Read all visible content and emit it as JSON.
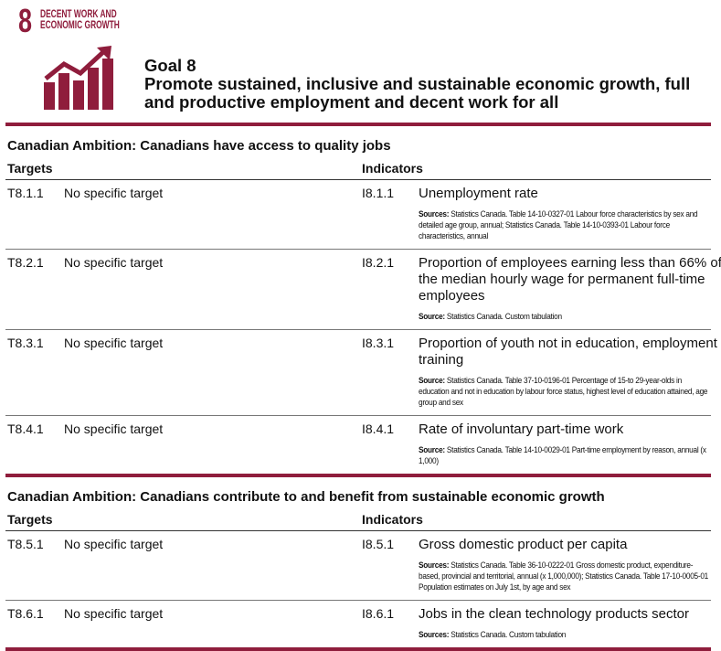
{
  "badge": {
    "number": "8",
    "lines": [
      "DECENT WORK AND",
      "ECONOMIC GROWTH"
    ]
  },
  "goal": {
    "label": "Goal 8",
    "title": "Promote sustained, inclusive and sustainable economic growth, full and productive employment and decent work for all"
  },
  "sections": [
    {
      "ambition": "Canadian Ambition: Canadians have access to quality jobs",
      "targets_header": "Targets",
      "indicators_header": "Indicators",
      "rows": [
        {
          "target_id": "T8.1.1",
          "target_text": "No specific target",
          "indicator_id": "I8.1.1",
          "indicator_text": "Unemployment rate",
          "source_label": "Sources:",
          "source_text": "Statistics Canada. Table 14-10-0327-01 Labour force characteristics by sex and detailed age group, annual; Statistics Canada. Table 14-10-0393-01 Labour force characteristics, annual"
        },
        {
          "target_id": "T8.2.1",
          "target_text": "No specific target",
          "indicator_id": "I8.2.1",
          "indicator_text": "Proportion of employees earning less than 66% of the median hourly wage for permanent full-time employees",
          "source_label": "Source:",
          "source_text": "Statistics Canada. Custom tabulation"
        },
        {
          "target_id": "T8.3.1",
          "target_text": "No specific target",
          "indicator_id": "I8.3.1",
          "indicator_text": "Proportion of youth not in education, employment or training",
          "source_label": "Source:",
          "source_text": "Statistics Canada. Table 37-10-0196-01 Percentage of 15-to 29-year-olds in education and not in education by labour force status, highest level of education attained, age group and sex"
        },
        {
          "target_id": "T8.4.1",
          "target_text": "No specific target",
          "indicator_id": "I8.4.1",
          "indicator_text": "Rate of involuntary part-time work",
          "source_label": "Source:",
          "source_text": "Statistics Canada. Table 14-10-0029-01 Part-time employment by reason, annual (x 1,000)"
        }
      ]
    },
    {
      "ambition": "Canadian Ambition: Canadians contribute to and benefit from sustainable economic growth",
      "targets_header": "Targets",
      "indicators_header": "Indicators",
      "rows": [
        {
          "target_id": "T8.5.1",
          "target_text": "No specific target",
          "indicator_id": "I8.5.1",
          "indicator_text": "Gross domestic product per capita",
          "source_label": "Sources:",
          "source_text": "Statistics Canada. Table 36-10-0222-01 Gross domestic product, expenditure-based, provincial and territorial, annual (x 1,000,000); Statistics Canada. Table 17-10-0005-01 Population estimates on July 1st, by age and sex"
        },
        {
          "target_id": "T8.6.1",
          "target_text": "No specific target",
          "indicator_id": "I8.6.1",
          "indicator_text": "Jobs in the clean technology products sector",
          "source_label": "Sources:",
          "source_text": "Statistics Canada. Custom tabulation"
        }
      ]
    }
  ]
}
